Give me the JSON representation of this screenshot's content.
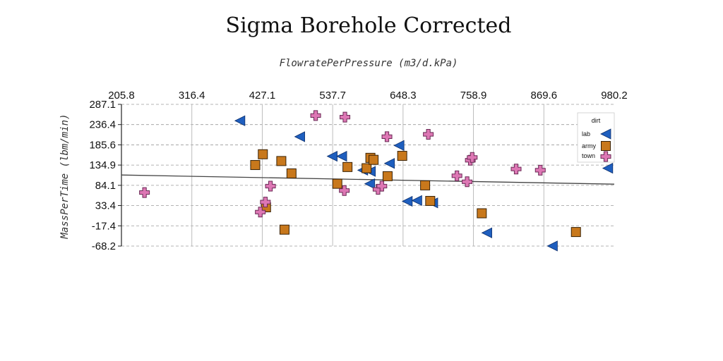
{
  "chart_data": {
    "type": "scatter",
    "title": "Sigma Borehole Corrected",
    "xlabel": "FlowratePerPressure (m3/d.kPa)",
    "ylabel": "MassPerTime (lbm/min)",
    "x_ticks": [
      "205.8",
      "316.4",
      "427.1",
      "537.7",
      "648.3",
      "758.9",
      "869.6",
      "980.2"
    ],
    "y_ticks": [
      "287.1",
      "236.4",
      "185.6",
      "134.9",
      "84.1",
      "33.4",
      "-17.4",
      "-68.2"
    ],
    "xlim": [
      205.8,
      980.2
    ],
    "ylim": [
      -68.2,
      287.1
    ],
    "x_axis_position": "top",
    "grid": true,
    "legend": {
      "title": "dirt",
      "position": "top-right"
    },
    "trend_line": {
      "x": [
        205.8,
        980.2
      ],
      "y": [
        110,
        87
      ]
    },
    "series": [
      {
        "name": "lab",
        "marker": "triangle-left",
        "color": "#1f5fbf",
        "points": [
          [
            392,
            246
          ],
          [
            486,
            206
          ],
          [
            537,
            157
          ],
          [
            552,
            157
          ],
          [
            627,
            139
          ],
          [
            585,
            122
          ],
          [
            597,
            119
          ],
          [
            596,
            88
          ],
          [
            655,
            44
          ],
          [
            670,
            46
          ],
          [
            695,
            40
          ],
          [
            642,
            184
          ],
          [
            780,
            -35
          ],
          [
            883,
            -68
          ],
          [
            970,
            127
          ]
        ]
      },
      {
        "name": "army",
        "marker": "square",
        "color": "#c8781c",
        "points": [
          [
            428,
            162
          ],
          [
            416,
            135
          ],
          [
            457,
            145
          ],
          [
            473,
            114
          ],
          [
            545,
            88
          ],
          [
            561,
            130
          ],
          [
            591,
            127
          ],
          [
            597,
            153
          ],
          [
            602,
            148
          ],
          [
            647,
            158
          ],
          [
            624,
            107
          ],
          [
            683,
            84
          ],
          [
            691,
            45
          ],
          [
            433,
            29
          ],
          [
            462,
            -27
          ],
          [
            772,
            14
          ],
          [
            920,
            -33
          ],
          [
            965,
            177
          ]
        ]
      },
      {
        "name": "town",
        "marker": "plus",
        "color": "#dd77b4",
        "points": [
          [
            242,
            66
          ],
          [
            432,
            42
          ],
          [
            440,
            82
          ],
          [
            424,
            17
          ],
          [
            511,
            259
          ],
          [
            557,
            255
          ],
          [
            556,
            71
          ],
          [
            609,
            74
          ],
          [
            623,
            206
          ],
          [
            615,
            82
          ],
          [
            688,
            212
          ],
          [
            733,
            108
          ],
          [
            754,
            147
          ],
          [
            757,
            154
          ],
          [
            749,
            93
          ],
          [
            826,
            125
          ],
          [
            864,
            122
          ],
          [
            968,
            160
          ]
        ]
      }
    ]
  }
}
